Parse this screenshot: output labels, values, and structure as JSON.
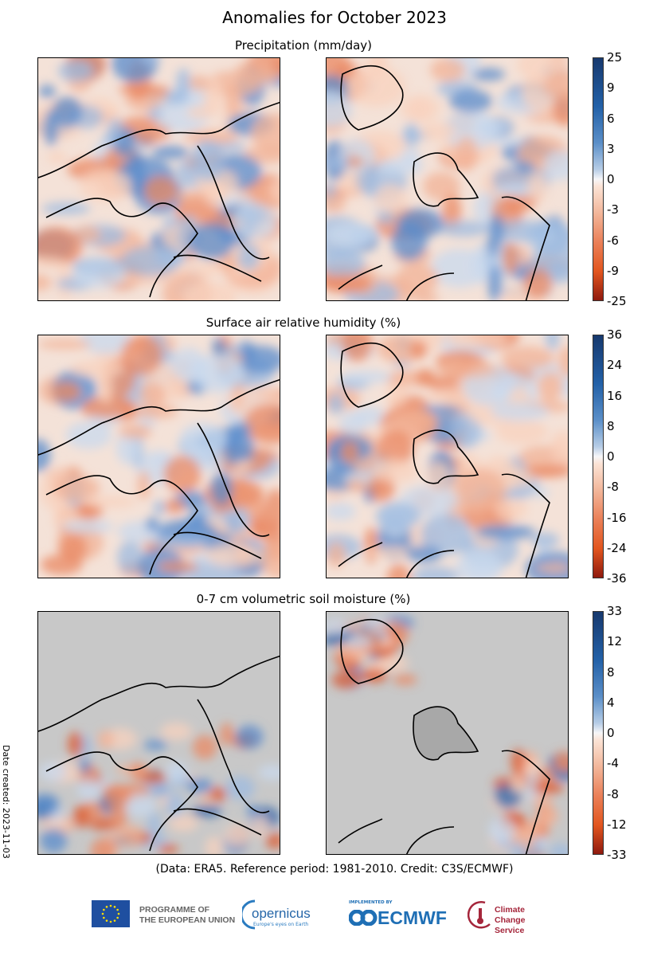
{
  "title": "Anomalies for October 2023",
  "panels": [
    {
      "subtitle": "Precipitation (mm/day)",
      "ticks": [
        "25",
        "9",
        "6",
        "3",
        "0",
        "-3",
        "-6",
        "-9",
        "-25"
      ],
      "kind": "precip"
    },
    {
      "subtitle": "Surface air relative humidity (%)",
      "ticks": [
        "36",
        "24",
        "16",
        "8",
        "0",
        "-8",
        "-16",
        "-24",
        "-36"
      ],
      "kind": "humidity"
    },
    {
      "subtitle": "0-7 cm volumetric soil moisture (%)",
      "ticks": [
        "33",
        "12",
        "8",
        "4",
        "0",
        "-4",
        "-8",
        "-12",
        "-33"
      ],
      "kind": "soil"
    }
  ],
  "colormap": {
    "positive": "#1a4a8a",
    "zero": "#f7f7f7",
    "negative": "#a01010",
    "missing": "#c8c8c8"
  },
  "date_created": "Date created: 2023-11-03",
  "credit": "(Data: ERA5.  Reference period: 1981-2010.  Credit: C3S/ECMWF)",
  "logos": {
    "eu": "PROGRAMME OF THE EUROPEAN UNION",
    "eu_line1": "PROGRAMME OF",
    "eu_line2": "THE EUROPEAN UNION",
    "copernicus": "opernicus",
    "copernicus_tag": "Europe's eyes on Earth",
    "ecmwf_tag": "IMPLEMENTED BY",
    "ecmwf": "ECMWF",
    "c3s_line1": "Climate",
    "c3s_line2": "Change Service"
  }
}
